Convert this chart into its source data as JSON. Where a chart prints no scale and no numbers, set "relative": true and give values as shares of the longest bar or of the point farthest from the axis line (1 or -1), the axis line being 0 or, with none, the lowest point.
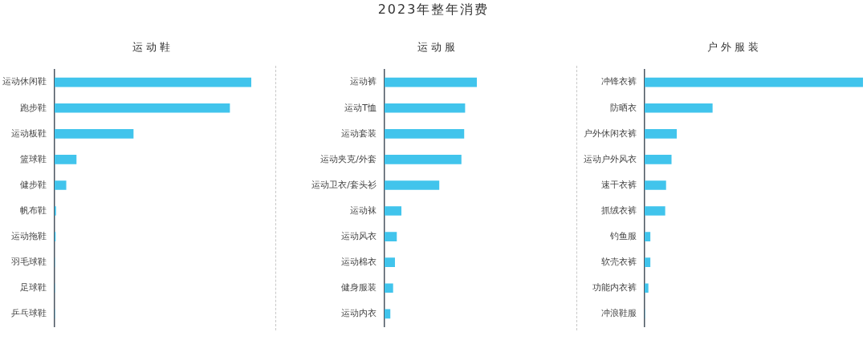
{
  "chart_data": [
    {
      "type": "other",
      "title": "2023年整年消费"
    },
    {
      "type": "bar",
      "orientation": "horizontal",
      "relative": true,
      "subtitle": "运动鞋",
      "categories": [
        "运动休闲鞋",
        "跑步鞋",
        "运动板鞋",
        "篮球鞋",
        "健步鞋",
        "帆布鞋",
        "运动拖鞋",
        "羽毛球鞋",
        "足球鞋",
        "乒乓球鞋"
      ],
      "values": [
        1,
        0.89,
        0.4,
        0.11,
        0.058,
        0.006,
        0.004,
        0,
        0,
        0
      ],
      "color": "#41c4ec"
    },
    {
      "type": "bar",
      "orientation": "horizontal",
      "relative": true,
      "subtitle": "运动服",
      "categories": [
        "运动裤",
        "运动T恤",
        "运动套装",
        "运动夹克/外套",
        "运动卫衣/套头衫",
        "运动袜",
        "运动风衣",
        "运动棉衣",
        "健身服装",
        "运动内衣"
      ],
      "values": [
        1,
        0.87,
        0.86,
        0.83,
        0.59,
        0.18,
        0.13,
        0.11,
        0.09,
        0.06
      ],
      "color": "#41c4ec"
    },
    {
      "type": "bar",
      "orientation": "horizontal",
      "relative": true,
      "subtitle": "户外服装",
      "categories": [
        "冲锋衣裤",
        "防晒衣",
        "户外休闲衣裤",
        "运动户外风衣",
        "速干衣裤",
        "抓绒衣裤",
        "钓鱼服",
        "软壳衣裤",
        "功能内衣裤",
        "冲浪鞋服"
      ],
      "values": [
        1,
        0.31,
        0.146,
        0.122,
        0.097,
        0.093,
        0.025,
        0.025,
        0.016,
        0
      ],
      "color": "#41c4ec"
    }
  ]
}
